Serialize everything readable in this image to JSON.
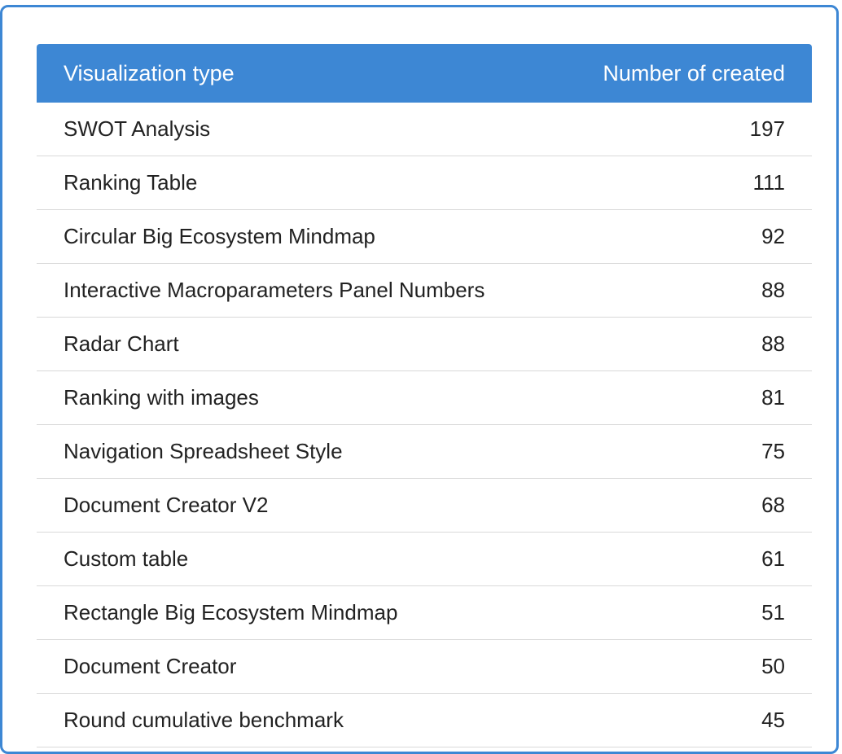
{
  "table": {
    "headers": {
      "type": "Visualization type",
      "count": "Number of created"
    },
    "rows": [
      {
        "type": "SWOT Analysis",
        "count": "197"
      },
      {
        "type": "Ranking Table",
        "count": "111"
      },
      {
        "type": "Circular Big Ecosystem Mindmap",
        "count": "92"
      },
      {
        "type": "Interactive Macroparameters Panel Numbers",
        "count": "88"
      },
      {
        "type": "Radar Chart",
        "count": "88"
      },
      {
        "type": "Ranking with images",
        "count": "81"
      },
      {
        "type": "Navigation Spreadsheet Style",
        "count": "75"
      },
      {
        "type": "Document Creator V2",
        "count": "68"
      },
      {
        "type": "Custom table",
        "count": "61"
      },
      {
        "type": "Rectangle Big Ecosystem Mindmap",
        "count": "51"
      },
      {
        "type": "Document Creator",
        "count": "50"
      },
      {
        "type": "Round cumulative benchmark",
        "count": "45"
      }
    ]
  },
  "colors": {
    "header_bg": "#3d87d4",
    "panel_border": "#3d87d4",
    "row_divider": "#d9d9d9"
  }
}
